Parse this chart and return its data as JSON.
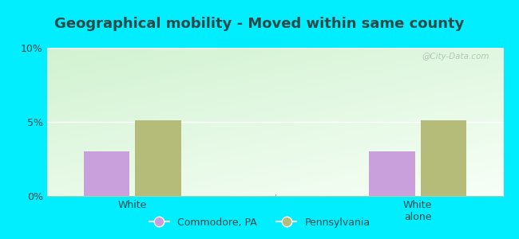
{
  "title": "Geographical mobility - Moved within same county",
  "categories": [
    "White",
    "White\nalone"
  ],
  "commodore_values": [
    3.0,
    3.0
  ],
  "pennsylvania_values": [
    5.1,
    5.1
  ],
  "commodore_color": "#c9a0dc",
  "pennsylvania_color": "#b5bc7a",
  "background_outer": "#00eeff",
  "background_plot_topleft": "#c8e6c0",
  "background_plot_bottomright": "#f5fff5",
  "ylim": [
    0,
    10
  ],
  "yticks": [
    0,
    5,
    10
  ],
  "ytick_labels": [
    "0%",
    "5%",
    "10%"
  ],
  "bar_width": 0.32,
  "legend_labels": [
    "Commodore, PA",
    "Pennsylvania"
  ],
  "title_fontsize": 13,
  "tick_fontsize": 9,
  "legend_fontsize": 9,
  "watermark": "@City-Data.com",
  "text_color": "#2a4a4a"
}
